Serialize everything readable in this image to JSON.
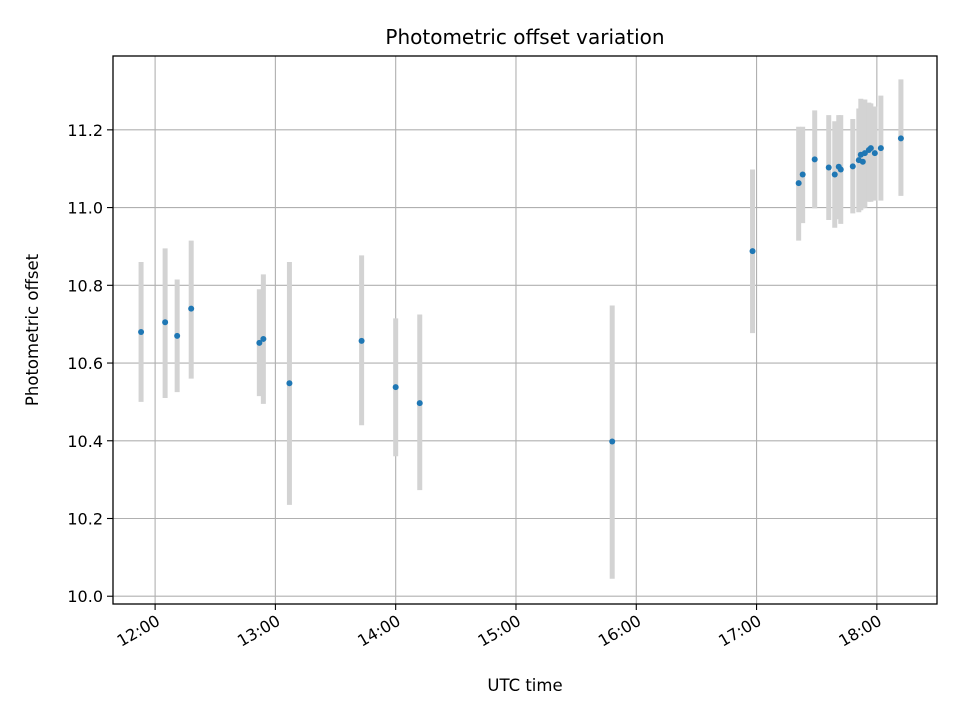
{
  "chart_data": {
    "type": "scatter",
    "title": "Photometric offset variation",
    "xlabel": "UTC time",
    "ylabel": "Photometric offset",
    "x_tick_labels": [
      "12:00",
      "13:00",
      "14:00",
      "15:00",
      "16:00",
      "17:00",
      "18:00"
    ],
    "y_tick_labels": [
      "10.0",
      "10.2",
      "10.4",
      "10.6",
      "10.8",
      "11.0",
      "11.2"
    ],
    "xlim": [
      "11:39",
      "18:30"
    ],
    "ylim": [
      9.98,
      11.39
    ],
    "grid": true,
    "colors": {
      "point": "#1f77b4",
      "errorbar": "#d3d3d3",
      "grid": "#b0b0b0"
    },
    "points": [
      {
        "x": "11:53",
        "y": 10.68,
        "yerr_low": 10.5,
        "yerr_high": 10.86
      },
      {
        "x": "12:05",
        "y": 10.705,
        "yerr_low": 10.51,
        "yerr_high": 10.895
      },
      {
        "x": "12:11",
        "y": 10.67,
        "yerr_low": 10.525,
        "yerr_high": 10.815
      },
      {
        "x": "12:18",
        "y": 10.74,
        "yerr_low": 10.56,
        "yerr_high": 10.915
      },
      {
        "x": "12:52",
        "y": 10.652,
        "yerr_low": 10.515,
        "yerr_high": 10.79
      },
      {
        "x": "12:54",
        "y": 10.662,
        "yerr_low": 10.495,
        "yerr_high": 10.828
      },
      {
        "x": "13:07",
        "y": 10.548,
        "yerr_low": 10.235,
        "yerr_high": 10.86
      },
      {
        "x": "13:43",
        "y": 10.657,
        "yerr_low": 10.44,
        "yerr_high": 10.877
      },
      {
        "x": "14:00",
        "y": 10.538,
        "yerr_low": 10.36,
        "yerr_high": 10.715
      },
      {
        "x": "14:12",
        "y": 10.497,
        "yerr_low": 10.273,
        "yerr_high": 10.725
      },
      {
        "x": "15:48",
        "y": 10.398,
        "yerr_low": 10.045,
        "yerr_high": 10.748
      },
      {
        "x": "16:58",
        "y": 10.888,
        "yerr_low": 10.677,
        "yerr_high": 11.098
      },
      {
        "x": "17:21",
        "y": 11.063,
        "yerr_low": 10.915,
        "yerr_high": 11.208
      },
      {
        "x": "17:23",
        "y": 11.085,
        "yerr_low": 10.96,
        "yerr_high": 11.208
      },
      {
        "x": "17:29",
        "y": 11.124,
        "yerr_low": 10.998,
        "yerr_high": 11.25
      },
      {
        "x": "17:36",
        "y": 11.103,
        "yerr_low": 10.968,
        "yerr_high": 11.238
      },
      {
        "x": "17:39",
        "y": 11.085,
        "yerr_low": 10.948,
        "yerr_high": 11.222
      },
      {
        "x": "17:41",
        "y": 11.105,
        "yerr_low": 10.97,
        "yerr_high": 11.238
      },
      {
        "x": "17:42",
        "y": 11.098,
        "yerr_low": 10.958,
        "yerr_high": 11.238
      },
      {
        "x": "17:48",
        "y": 11.106,
        "yerr_low": 10.985,
        "yerr_high": 11.228
      },
      {
        "x": "17:51",
        "y": 11.122,
        "yerr_low": 10.988,
        "yerr_high": 11.255
      },
      {
        "x": "17:52",
        "y": 11.136,
        "yerr_low": 10.993,
        "yerr_high": 11.28
      },
      {
        "x": "17:53",
        "y": 11.118,
        "yerr_low": 10.998,
        "yerr_high": 11.275
      },
      {
        "x": "17:54",
        "y": 11.14,
        "yerr_low": 11.0,
        "yerr_high": 11.278
      },
      {
        "x": "17:56",
        "y": 11.148,
        "yerr_low": 11.015,
        "yerr_high": 11.27
      },
      {
        "x": "17:57",
        "y": 11.153,
        "yerr_low": 11.015,
        "yerr_high": 11.268
      },
      {
        "x": "17:59",
        "y": 11.14,
        "yerr_low": 11.018,
        "yerr_high": 11.26
      },
      {
        "x": "18:02",
        "y": 11.153,
        "yerr_low": 11.018,
        "yerr_high": 11.288
      },
      {
        "x": "18:12",
        "y": 11.178,
        "yerr_low": 11.03,
        "yerr_high": 11.33
      }
    ]
  }
}
